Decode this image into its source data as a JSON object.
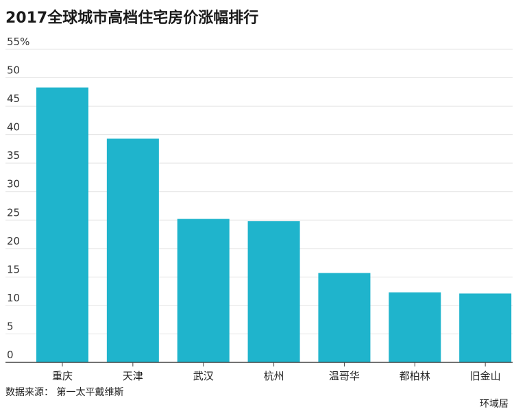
{
  "title": "2017全球城市高档住宅房价涨幅排行",
  "source": "数据来源： 第一太平戴维斯",
  "credit": "环域居",
  "colors": {
    "bar": "#1fb4cc",
    "grid": "#e3e3e3",
    "axis": "#444444",
    "text": "#333333"
  },
  "chart_data": {
    "type": "bar",
    "categories": [
      "重庆",
      "天津",
      "武汉",
      "杭州",
      "温哥华",
      "都柏林",
      "旧金山"
    ],
    "values": [
      48.3,
      39.3,
      25.2,
      24.8,
      15.7,
      12.3,
      12.1
    ],
    "ylim": [
      0,
      55
    ],
    "yticks": [
      0,
      5,
      10,
      15,
      20,
      25,
      30,
      35,
      40,
      45,
      50,
      55
    ],
    "ytick_labels": [
      "0",
      "5",
      "10",
      "15",
      "20",
      "25",
      "30",
      "35",
      "40",
      "45",
      "50",
      "55%"
    ],
    "grid": true
  }
}
